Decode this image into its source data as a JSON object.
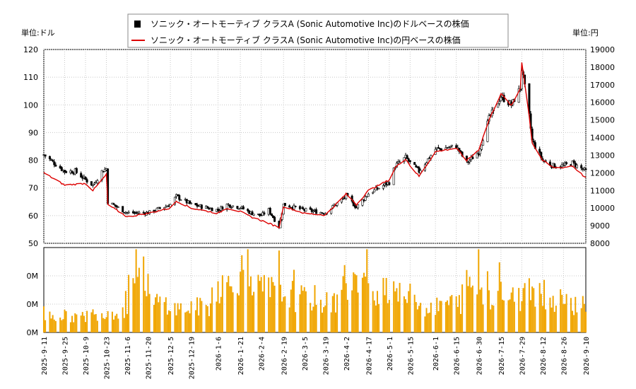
{
  "chart_data": {
    "type": "line",
    "legend": {
      "placement": "top",
      "entries": [
        {
          "label": "ソニック・オートモーティブ クラスA (Sonic Automotive Inc)のドルベースの株価",
          "symbol": "candlestick",
          "color": "#000000"
        },
        {
          "label": "ソニック・オートモーティブ クラスA (Sonic Automotive Inc)の円ベースの株価",
          "symbol": "line",
          "color": "#dd0000"
        }
      ]
    },
    "left_axis": {
      "unit_label": "単位:ドル",
      "ylim": [
        50,
        120
      ],
      "ticks": [
        50,
        60,
        70,
        80,
        90,
        100,
        110,
        120
      ]
    },
    "right_axis": {
      "unit_label": "単位:円",
      "ylim": [
        8000,
        19000
      ],
      "ticks": [
        8000,
        9000,
        10000,
        11000,
        12000,
        13000,
        14000,
        15000,
        16000,
        17000,
        18000,
        19000
      ]
    },
    "volume_axis": {
      "tick_labels": [
        "0M",
        "0M",
        "0M"
      ]
    },
    "x_tick_labels": [
      "2025-9-11",
      "2025-9-25",
      "2025-10-9",
      "2025-10-23",
      "2025-11-6",
      "2025-11-20",
      "2025-12-5",
      "2025-12-19",
      "2026-1-6",
      "2026-1-21",
      "2026-2-4",
      "2026-2-19",
      "2026-3-5",
      "2026-3-19",
      "2026-4-2",
      "2026-4-17",
      "2026-5-1",
      "2026-5-15",
      "2026-6-1",
      "2026-6-15",
      "2026-6-30",
      "2026-7-15",
      "2026-7-29",
      "2026-8-12",
      "2026-8-26",
      "2026-9-10"
    ],
    "grid": true,
    "usd_price_keypoints": [
      {
        "date": "2025-9-11",
        "value": 82
      },
      {
        "date": "2025-9-18",
        "value": 79
      },
      {
        "date": "2025-9-25",
        "value": 76
      },
      {
        "date": "2025-10-2",
        "value": 76
      },
      {
        "date": "2025-10-9",
        "value": 73
      },
      {
        "date": "2025-10-14",
        "value": 71
      },
      {
        "date": "2025-10-20",
        "value": 76
      },
      {
        "date": "2025-10-23",
        "value": 77
      },
      {
        "date": "2025-10-24",
        "value": 65
      },
      {
        "date": "2025-11-6",
        "value": 61
      },
      {
        "date": "2025-11-20",
        "value": 61
      },
      {
        "date": "2025-12-5",
        "value": 64
      },
      {
        "date": "2025-12-9",
        "value": 67
      },
      {
        "date": "2025-12-19",
        "value": 64
      },
      {
        "date": "2026-1-6",
        "value": 62
      },
      {
        "date": "2026-1-12",
        "value": 64
      },
      {
        "date": "2026-1-21",
        "value": 63
      },
      {
        "date": "2026-1-28",
        "value": 61
      },
      {
        "date": "2026-2-4",
        "value": 60
      },
      {
        "date": "2026-2-9",
        "value": 62
      },
      {
        "date": "2026-2-16",
        "value": 56
      },
      {
        "date": "2026-2-19",
        "value": 64
      },
      {
        "date": "2026-3-5",
        "value": 62
      },
      {
        "date": "2026-3-19",
        "value": 61
      },
      {
        "date": "2026-4-2",
        "value": 67
      },
      {
        "date": "2026-4-9",
        "value": 63
      },
      {
        "date": "2026-4-17",
        "value": 68
      },
      {
        "date": "2026-5-1",
        "value": 72
      },
      {
        "date": "2026-5-5",
        "value": 78
      },
      {
        "date": "2026-5-12",
        "value": 81
      },
      {
        "date": "2026-5-15",
        "value": 79
      },
      {
        "date": "2026-5-21",
        "value": 76
      },
      {
        "date": "2026-6-1",
        "value": 84
      },
      {
        "date": "2026-6-15",
        "value": 85
      },
      {
        "date": "2026-6-22",
        "value": 79
      },
      {
        "date": "2026-6-30",
        "value": 83
      },
      {
        "date": "2026-7-7",
        "value": 95
      },
      {
        "date": "2026-7-15",
        "value": 103
      },
      {
        "date": "2026-7-22",
        "value": 100
      },
      {
        "date": "2026-7-28",
        "value": 106
      },
      {
        "date": "2026-7-29",
        "value": 113
      },
      {
        "date": "2026-8-3",
        "value": 96
      },
      {
        "date": "2026-8-5",
        "value": 87
      },
      {
        "date": "2026-8-12",
        "value": 80
      },
      {
        "date": "2026-8-19",
        "value": 78
      },
      {
        "date": "2026-8-26",
        "value": 78
      },
      {
        "date": "2026-9-1",
        "value": 79
      },
      {
        "date": "2026-9-10",
        "value": 76
      }
    ],
    "jpy_price_keypoints": [
      {
        "date": "2025-9-11",
        "value": 12000
      },
      {
        "date": "2025-9-25",
        "value": 11300
      },
      {
        "date": "2025-10-9",
        "value": 11400
      },
      {
        "date": "2025-10-14",
        "value": 11000
      },
      {
        "date": "2025-10-23",
        "value": 11900
      },
      {
        "date": "2025-10-24",
        "value": 10200
      },
      {
        "date": "2025-11-6",
        "value": 9500
      },
      {
        "date": "2025-11-20",
        "value": 9700
      },
      {
        "date": "2025-12-5",
        "value": 10000
      },
      {
        "date": "2025-12-9",
        "value": 10400
      },
      {
        "date": "2025-12-19",
        "value": 10000
      },
      {
        "date": "2026-1-6",
        "value": 9700
      },
      {
        "date": "2026-1-12",
        "value": 10000
      },
      {
        "date": "2026-1-21",
        "value": 9800
      },
      {
        "date": "2026-1-28",
        "value": 9500
      },
      {
        "date": "2026-2-4",
        "value": 9300
      },
      {
        "date": "2026-2-16",
        "value": 8900
      },
      {
        "date": "2026-2-19",
        "value": 10100
      },
      {
        "date": "2026-3-5",
        "value": 9700
      },
      {
        "date": "2026-3-19",
        "value": 9600
      },
      {
        "date": "2026-4-2",
        "value": 10800
      },
      {
        "date": "2026-4-9",
        "value": 10200
      },
      {
        "date": "2026-4-17",
        "value": 11000
      },
      {
        "date": "2026-5-1",
        "value": 11600
      },
      {
        "date": "2026-5-5",
        "value": 12300
      },
      {
        "date": "2026-5-12",
        "value": 12800
      },
      {
        "date": "2026-5-15",
        "value": 12400
      },
      {
        "date": "2026-5-21",
        "value": 11800
      },
      {
        "date": "2026-6-1",
        "value": 13200
      },
      {
        "date": "2026-6-15",
        "value": 13400
      },
      {
        "date": "2026-6-22",
        "value": 12700
      },
      {
        "date": "2026-6-30",
        "value": 13300
      },
      {
        "date": "2026-7-7",
        "value": 15000
      },
      {
        "date": "2026-7-15",
        "value": 16500
      },
      {
        "date": "2026-7-22",
        "value": 15800
      },
      {
        "date": "2026-7-28",
        "value": 16800
      },
      {
        "date": "2026-7-29",
        "value": 18300
      },
      {
        "date": "2026-8-3",
        "value": 15200
      },
      {
        "date": "2026-8-5",
        "value": 13700
      },
      {
        "date": "2026-8-12",
        "value": 12700
      },
      {
        "date": "2026-8-19",
        "value": 12300
      },
      {
        "date": "2026-8-26",
        "value": 12300
      },
      {
        "date": "2026-9-1",
        "value": 12400
      },
      {
        "date": "2026-9-10",
        "value": 11700
      }
    ],
    "volume_pattern": [
      0.2,
      0.18,
      0.22,
      0.25,
      0.65,
      0.35,
      0.28,
      0.3,
      0.55,
      0.7,
      0.5,
      0.45,
      0.4,
      0.35,
      0.6,
      0.5,
      0.55,
      0.42,
      0.3,
      0.35,
      0.55,
      0.45,
      0.4,
      0.5,
      0.38,
      0.34
    ]
  },
  "colors": {
    "candle_up": "#ffffff",
    "candle_down": "#000000",
    "jpy_line": "#dd0000",
    "volume": "#f0a500",
    "grid": "#c8c8c8"
  }
}
